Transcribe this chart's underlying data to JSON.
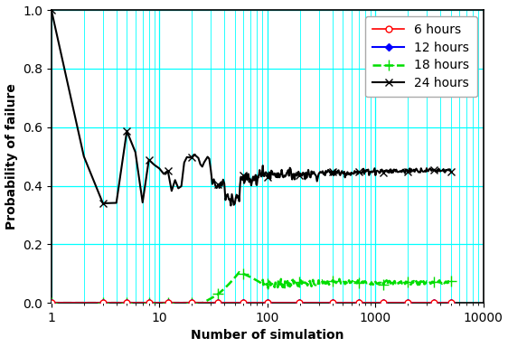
{
  "title": "",
  "xlabel": "Number of simulation",
  "ylabel": "Probability of failure",
  "xlim": [
    1,
    10000
  ],
  "ylim": [
    0.0,
    1.0
  ],
  "grid_color": "#00ffff",
  "background_color": "#ffffff",
  "series": [
    {
      "label": "6 hours",
      "color": "red",
      "marker": "o",
      "linestyle": "-",
      "markerfacecolor": "white",
      "linewidth": 1.2,
      "markersize": 5
    },
    {
      "label": "12 hours",
      "color": "blue",
      "marker": "D",
      "linestyle": "-",
      "markerfacecolor": "blue",
      "linewidth": 1.5,
      "markersize": 4
    },
    {
      "label": "18 hours",
      "color": "#00dd00",
      "marker": "+",
      "linestyle": "--",
      "markerfacecolor": "#00dd00",
      "linewidth": 1.8,
      "markersize": 8
    },
    {
      "label": "24 hours",
      "color": "black",
      "marker": "x",
      "linestyle": "-",
      "markerfacecolor": "black",
      "linewidth": 1.5,
      "markersize": 6
    }
  ],
  "legend_loc": "upper right",
  "font_size": 10,
  "tick_label_size": 10,
  "marker_positions": [
    1,
    3,
    5,
    8,
    12,
    20,
    35,
    60,
    100,
    200,
    400,
    700,
    1200,
    2000,
    3500,
    5000
  ]
}
